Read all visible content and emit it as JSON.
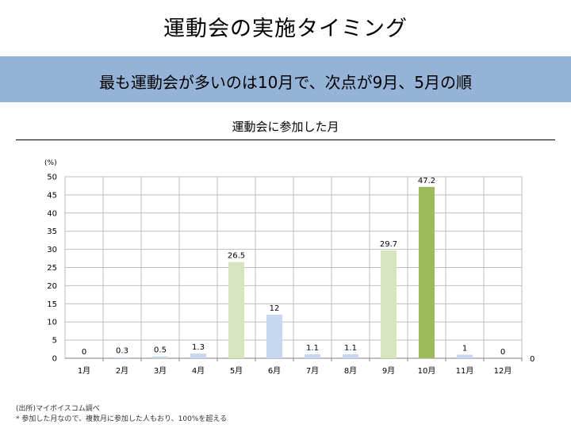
{
  "slide_title": "運動会の実施タイミング",
  "banner": {
    "text": "最も運動会が多いのは10月で、次点が9月、5月の順"
  },
  "colors": {
    "banner_bg": "#95b3d7",
    "bar_default": "#c6d9f1",
    "bar_highlight": "#d7e4bd",
    "bar_max": "#9bbb59",
    "grid": "#bfbfbf"
  },
  "chart_data": {
    "type": "bar",
    "title": "運動会に参加した月",
    "ylabel": "(%)",
    "xlabel": "",
    "ylim": [
      0,
      50
    ],
    "yticks": [
      "0",
      "5",
      "10",
      "15",
      "20",
      "25",
      "30",
      "35",
      "40",
      "45",
      "50"
    ],
    "categories": [
      "1月",
      "2月",
      "3月",
      "4月",
      "5月",
      "6月",
      "7月",
      "8月",
      "9月",
      "10月",
      "11月",
      "12月"
    ],
    "values": [
      0,
      0.3,
      0.5,
      1.3,
      26.5,
      12,
      1.1,
      1.1,
      29.7,
      47.2,
      1,
      0
    ],
    "value_labels": [
      "0",
      "0.3",
      "0.5",
      "1.3",
      "26.5",
      "12",
      "1.1",
      "1.1",
      "29.7",
      "47.2",
      "1",
      "0"
    ],
    "bar_colors": [
      "#c6d9f1",
      "#c6d9f1",
      "#c6d9f1",
      "#c6d9f1",
      "#d7e4bd",
      "#c6d9f1",
      "#c6d9f1",
      "#c6d9f1",
      "#d7e4bd",
      "#9bbb59",
      "#c6d9f1",
      "#c6d9f1"
    ],
    "right_axis_label": "0",
    "grid": true
  },
  "footnotes": {
    "source": "(出所)マイボイスコム調べ",
    "note": "* 参加した月なので、複数月に参加した人もおり、100%を超える"
  }
}
